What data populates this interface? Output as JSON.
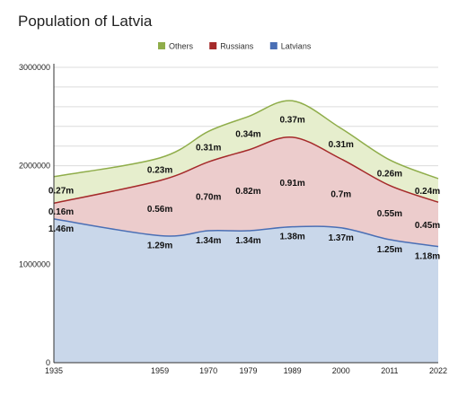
{
  "chart_data": {
    "type": "area",
    "stacked": true,
    "title": "Population of Latvia",
    "xlabel": "",
    "ylabel": "",
    "x": [
      "1935",
      "1959",
      "1970",
      "1979",
      "1989",
      "2000",
      "2011",
      "2022"
    ],
    "ylim": [
      0,
      3000000
    ],
    "yticks": [
      "0",
      "1000000",
      "2000000",
      "3000000"
    ],
    "grid": true,
    "legend": "top-center",
    "series": [
      {
        "name": "Latvians",
        "color": "#4a6fb5",
        "fill": "#c9d7ea",
        "values": [
          1460000,
          1290000,
          1340000,
          1340000,
          1380000,
          1370000,
          1250000,
          1180000
        ],
        "labels": [
          "1.46m",
          "1.29m",
          "1.34m",
          "1.34m",
          "1.38m",
          "1.37m",
          "1.25m",
          "1.18m"
        ]
      },
      {
        "name": "Russians",
        "color": "#a52a2a",
        "fill": "#eccccc",
        "values": [
          160000,
          560000,
          700000,
          820000,
          910000,
          700000,
          550000,
          450000
        ],
        "labels": [
          "0.16m",
          "0.56m",
          "0.70m",
          "0.82m",
          "0.91m",
          "0.7m",
          "0.55m",
          "0.45m"
        ]
      },
      {
        "name": "Others",
        "color": "#8fad4a",
        "fill": "#e6eecd",
        "values": [
          270000,
          230000,
          310000,
          340000,
          370000,
          310000,
          260000,
          240000
        ],
        "labels": [
          "0.27m",
          "0.23m",
          "0.31m",
          "0.34m",
          "0.37m",
          "0.31m",
          "0.26m",
          "0.24m"
        ]
      }
    ]
  }
}
